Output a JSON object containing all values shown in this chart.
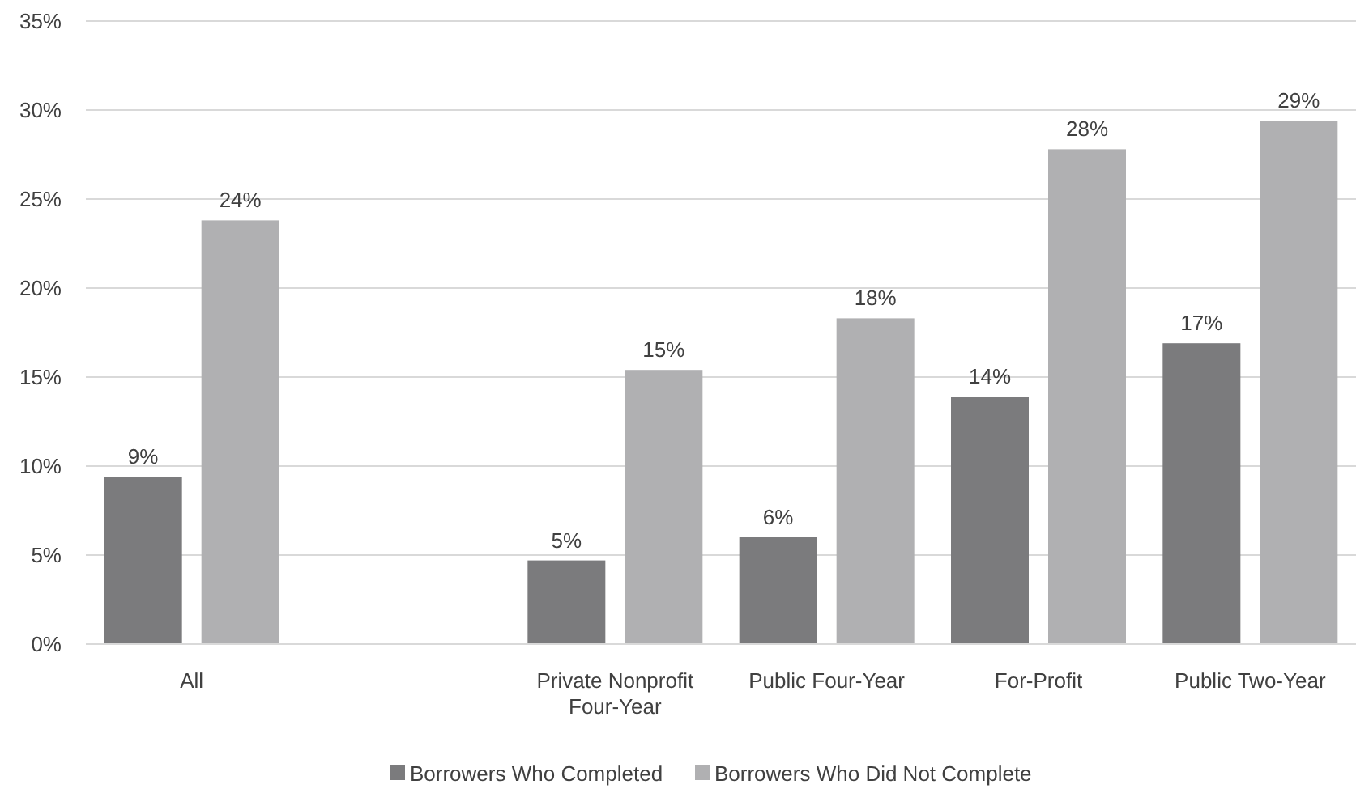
{
  "chart_data": {
    "type": "bar",
    "categories": [
      "All",
      null,
      "Private Nonprofit Four-Year",
      "Public Four-Year",
      "For-Profit",
      "Public Two-Year"
    ],
    "series": [
      {
        "name": "Borrowers Who Completed",
        "color": "#7b7b7d",
        "values": [
          9.4,
          null,
          4.7,
          6.0,
          13.9,
          16.9
        ],
        "value_labels": [
          "9%",
          null,
          "5%",
          "6%",
          "14%",
          "17%"
        ]
      },
      {
        "name": "Borrowers Who Did Not Complete",
        "color": "#b0b0b2",
        "values": [
          23.8,
          null,
          15.4,
          18.3,
          27.8,
          29.4
        ],
        "value_labels": [
          "24%",
          null,
          "15%",
          "18%",
          "28%",
          "29%"
        ]
      }
    ],
    "ylim": [
      0,
      35
    ],
    "yticks": [
      {
        "value": 0,
        "label": "0%"
      },
      {
        "value": 5,
        "label": "5%"
      },
      {
        "value": 10,
        "label": "10%"
      },
      {
        "value": 15,
        "label": "15%"
      },
      {
        "value": 20,
        "label": "20%"
      },
      {
        "value": 25,
        "label": "25%"
      },
      {
        "value": 30,
        "label": "30%"
      },
      {
        "value": 35,
        "label": "35%"
      }
    ],
    "grid": "y",
    "legend": "bottom"
  }
}
